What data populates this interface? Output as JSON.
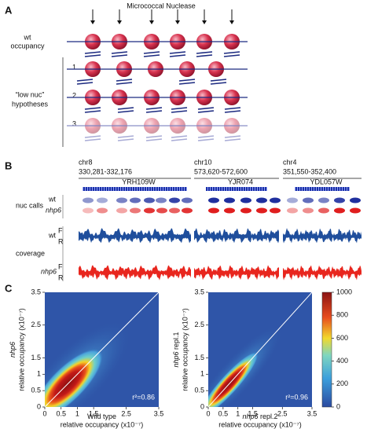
{
  "panels": {
    "a": {
      "letter": "A",
      "nuclease": "Micrococcal Nuclease",
      "wt": [
        "wt",
        "occupancy"
      ],
      "hypotheses": [
        "“low nuc”",
        "hypotheses"
      ],
      "rows": [
        "1",
        "2",
        "3"
      ]
    },
    "b": {
      "letter": "B",
      "regions": [
        {
          "chrom": "chr8",
          "range": "330,281-332,176",
          "gene": "YRH109W"
        },
        {
          "chrom": "chr10",
          "range": "573,620-572,600",
          "gene": "YJR074"
        },
        {
          "chrom": "chr4",
          "range": "351,550-352,400",
          "gene": "YDL057W"
        }
      ],
      "nuc_calls": "nuc calls",
      "coverage": "coverage",
      "wt": "wt",
      "nhp6": "nhp6",
      "forward": "F",
      "reverse": "R"
    },
    "c": {
      "letter": "C",
      "plots": [
        {
          "y_label": [
            {
              "text": "nhp6",
              "italic": true
            }
          ],
          "y_unit": "relative occupancy (x10⁻⁷)",
          "x_label": [
            {
              "text": "Wild type",
              "italic": false
            }
          ],
          "x_unit": "relative occupancy (x10⁻⁷)",
          "r2": "r²=0.86",
          "xlim": [
            0,
            3.5
          ],
          "ylim": [
            0,
            3.5
          ],
          "xticks": [
            0,
            0.5,
            1,
            1.5,
            2.5,
            3.5
          ],
          "yticks": [
            0,
            0.5,
            1,
            1.5,
            2.5,
            3.5
          ]
        },
        {
          "y_label": [
            {
              "text": "nhp6",
              "italic": true
            },
            {
              "text": "repl.1",
              "italic": false
            }
          ],
          "y_unit": "relative occupancy (x10⁻⁷)",
          "x_label": [
            {
              "text": "nhp6",
              "italic": true
            },
            {
              "text": "repl.2",
              "italic": false
            }
          ],
          "x_unit": "relative occupancy (x10⁻⁷)",
          "r2": "r²=0.96",
          "xlim": [
            0,
            3.5
          ],
          "ylim": [
            0,
            3.5
          ],
          "xticks": [
            0,
            0.5,
            1,
            1.5,
            2.5,
            3.5
          ],
          "yticks": [
            0,
            0.5,
            1,
            1.5,
            2.5,
            3.5
          ]
        }
      ],
      "colorbar": {
        "lim": [
          0,
          1000
        ],
        "ticks": [
          0,
          200,
          400,
          600,
          800,
          1000
        ]
      }
    }
  }
}
